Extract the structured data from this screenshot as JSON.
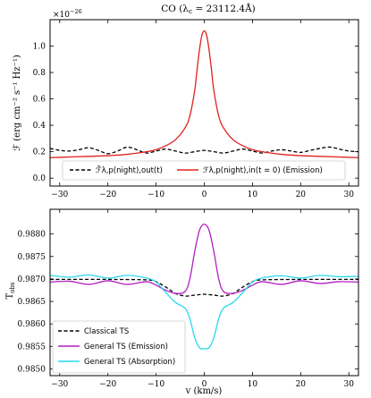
{
  "figure": {
    "title": "CO (λ",
    "title_sub": "c",
    "title_rest": " = 23112.4Å)",
    "offset_label": "×10",
    "offset_exp": "−26"
  },
  "chart_data": [
    {
      "type": "line",
      "ylabel": "ℱ (erg cm⁻² s⁻¹ Hz⁻¹)",
      "xlabel": "",
      "xlim": [
        -32,
        32
      ],
      "ylim": [
        -0.06,
        1.2
      ],
      "x_ticks": [
        -30,
        -20,
        -10,
        0,
        10,
        20,
        30
      ],
      "x_tick_labels": [
        "−30",
        "−20",
        "−10",
        "0",
        "10",
        "20",
        "30"
      ],
      "y_ticks": [
        0.0,
        0.2,
        0.4,
        0.6,
        0.8,
        1.0
      ],
      "y_tick_labels": [
        "0.0",
        "0.2",
        "0.4",
        "0.6",
        "0.8",
        "1.0"
      ],
      "legend_placement": "bottom",
      "series": [
        {
          "name": "ℱ̄λ,p(night),out(t)",
          "color": "#000000",
          "style": "dashed",
          "x": [
            -32,
            -30,
            -28,
            -26,
            -24,
            -22,
            -20,
            -18,
            -16,
            -14,
            -12,
            -10,
            -8,
            -6,
            -4,
            -2,
            0,
            2,
            4,
            6,
            8,
            10,
            12,
            14,
            16,
            18,
            20,
            22,
            24,
            26,
            28,
            30,
            32
          ],
          "y": [
            0.225,
            0.21,
            0.205,
            0.215,
            0.23,
            0.21,
            0.185,
            0.205,
            0.235,
            0.215,
            0.19,
            0.205,
            0.22,
            0.205,
            0.19,
            0.2,
            0.21,
            0.2,
            0.19,
            0.205,
            0.22,
            0.205,
            0.19,
            0.205,
            0.215,
            0.205,
            0.195,
            0.21,
            0.225,
            0.235,
            0.22,
            0.205,
            0.2
          ]
        },
        {
          "name": "ℱλ,p(night),in(t = 0) (Emission)",
          "color": "#e0201c",
          "style": "solid",
          "x": [
            -32,
            -28,
            -24,
            -20,
            -16,
            -12,
            -10,
            -8,
            -6,
            -4,
            -3,
            -2,
            -1.5,
            -1,
            -0.5,
            0,
            0.5,
            1,
            1.5,
            2,
            3,
            4,
            6,
            8,
            10,
            12,
            16,
            20,
            24,
            28,
            32
          ],
          "y": [
            0.155,
            0.16,
            0.165,
            0.17,
            0.18,
            0.2,
            0.215,
            0.245,
            0.29,
            0.38,
            0.47,
            0.66,
            0.82,
            0.97,
            1.08,
            1.115,
            1.08,
            0.97,
            0.82,
            0.66,
            0.47,
            0.38,
            0.29,
            0.245,
            0.215,
            0.2,
            0.18,
            0.17,
            0.165,
            0.16,
            0.155
          ]
        }
      ]
    },
    {
      "type": "line",
      "ylabel": "T",
      "ylabel_sub": "obs",
      "xlabel": "v (km/s)",
      "xlim": [
        -32,
        32
      ],
      "ylim": [
        0.98485,
        0.98855
      ],
      "x_ticks": [
        -30,
        -20,
        -10,
        0,
        10,
        20,
        30
      ],
      "x_tick_labels": [
        "−30",
        "−20",
        "−10",
        "0",
        "10",
        "20",
        "30"
      ],
      "y_ticks": [
        0.985,
        0.9855,
        0.986,
        0.9865,
        0.987,
        0.9875,
        0.988
      ],
      "y_tick_labels": [
        "0.9850",
        "0.9855",
        "0.9860",
        "0.9865",
        "0.9870",
        "0.9875",
        "0.9880"
      ],
      "legend_placement": "bottom-left",
      "series": [
        {
          "name": "Classical TS",
          "color": "#000000",
          "style": "dashed",
          "x": [
            -32,
            -20,
            -12,
            -10,
            -8,
            -6,
            -4,
            -2,
            0,
            2,
            4,
            6,
            8,
            10,
            12,
            20,
            32
          ],
          "y": [
            0.98699,
            0.98699,
            0.98698,
            0.98694,
            0.98682,
            0.98668,
            0.98662,
            0.98664,
            0.98666,
            0.98664,
            0.98662,
            0.98668,
            0.98682,
            0.98694,
            0.98698,
            0.98699,
            0.98699
          ]
        },
        {
          "name": "General TS (Emission)",
          "color": "#b31fc2",
          "style": "solid",
          "x": [
            -32,
            -28,
            -24,
            -20,
            -16,
            -12,
            -10,
            -8,
            -6,
            -4,
            -3,
            -2,
            -1,
            0,
            1,
            2,
            3,
            4,
            6,
            8,
            10,
            12,
            16,
            20,
            24,
            28,
            32
          ],
          "y": [
            0.98693,
            0.98695,
            0.98688,
            0.98696,
            0.98688,
            0.98694,
            0.98686,
            0.98675,
            0.98668,
            0.98672,
            0.987,
            0.9876,
            0.98808,
            0.98822,
            0.98808,
            0.9876,
            0.987,
            0.98672,
            0.98668,
            0.98675,
            0.98686,
            0.98694,
            0.98688,
            0.98696,
            0.9869,
            0.98694,
            0.98693
          ]
        },
        {
          "name": "General TS (Absorption)",
          "color": "#29d9ee",
          "style": "solid",
          "x": [
            -32,
            -28,
            -24,
            -20,
            -16,
            -12,
            -10,
            -8,
            -6,
            -4,
            -3,
            -2,
            -1,
            0,
            1,
            2,
            3,
            4,
            6,
            8,
            10,
            12,
            16,
            20,
            24,
            28,
            32
          ],
          "y": [
            0.98708,
            0.98704,
            0.98709,
            0.98702,
            0.98708,
            0.98702,
            0.98693,
            0.9867,
            0.98648,
            0.98635,
            0.98612,
            0.9857,
            0.98547,
            0.98545,
            0.98547,
            0.9857,
            0.98612,
            0.98635,
            0.98648,
            0.9867,
            0.98693,
            0.98702,
            0.98707,
            0.98702,
            0.98708,
            0.98705,
            0.98706
          ]
        }
      ]
    }
  ]
}
